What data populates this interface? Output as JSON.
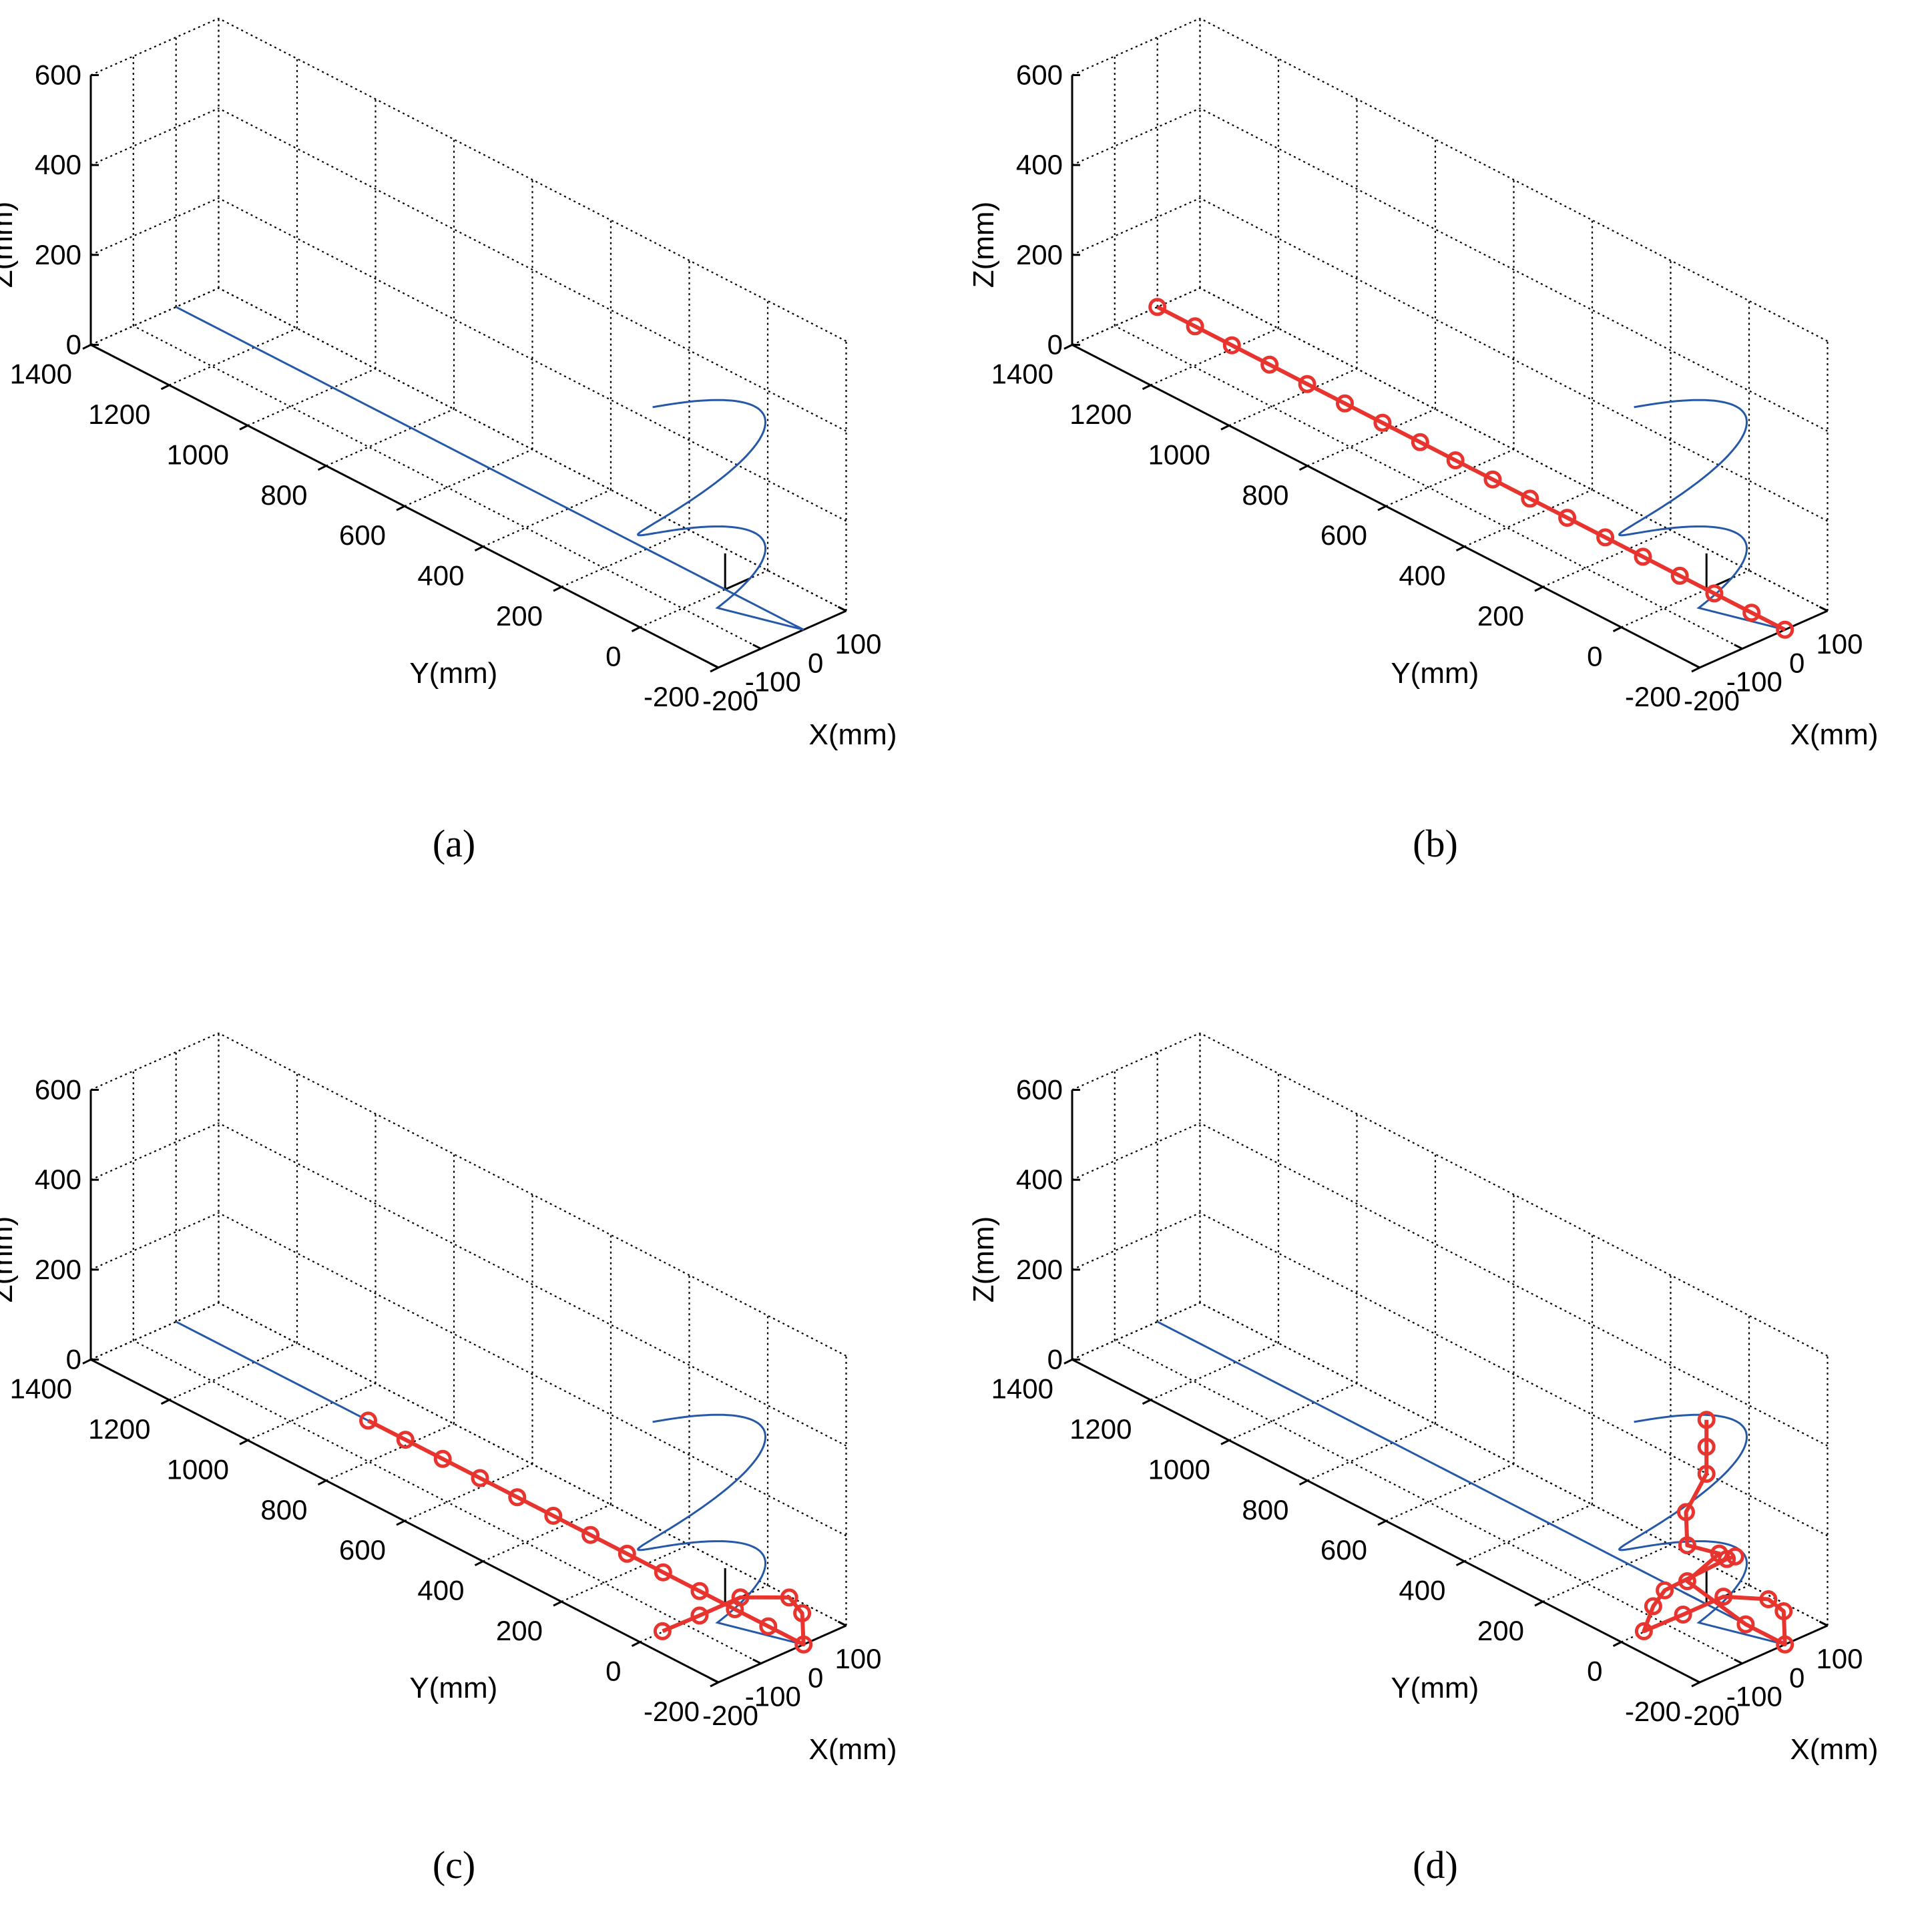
{
  "figure": {
    "colors": {
      "trajectory": "#2559a7",
      "manipulator": "#e8342f",
      "grid": "#000000"
    }
  },
  "chart_data": [
    {
      "type": "line3d",
      "panel": "a",
      "caption": "(a)",
      "xlabel": "X(mm)",
      "ylabel": "Y(mm)",
      "zlabel": "Z(mm)",
      "xlim": [
        -200,
        100
      ],
      "ylim": [
        -200,
        1400
      ],
      "zlim": [
        0,
        600
      ],
      "xticks": [
        -200,
        -100,
        0,
        100
      ],
      "yticks": [
        -200,
        0,
        200,
        400,
        600,
        800,
        1000,
        1200,
        1400
      ],
      "zticks": [
        0,
        200,
        400,
        600
      ],
      "xtick_labels": [
        "-200",
        "-100",
        "0",
        "100"
      ],
      "ytick_labels": [
        "-200",
        "0",
        "200",
        "400",
        "600",
        "800",
        "1000",
        "1200",
        "1400"
      ],
      "ztick_labels": [
        "0",
        "200",
        "400",
        "600"
      ],
      "grid": true,
      "series": [
        {
          "role": "trajectory",
          "marker": "none",
          "points": []
        }
      ]
    },
    {
      "type": "line3d",
      "panel": "b",
      "caption": "(b)",
      "xlabel": "X(mm)",
      "ylabel": "Y(mm)",
      "zlabel": "Z(mm)",
      "xlim": [
        -200,
        100
      ],
      "ylim": [
        -200,
        1400
      ],
      "zlim": [
        0,
        600
      ],
      "xticks": [
        -200,
        -100,
        0,
        100
      ],
      "yticks": [
        -200,
        0,
        200,
        400,
        600,
        800,
        1000,
        1200,
        1400
      ],
      "zticks": [
        0,
        200,
        400,
        600
      ],
      "xtick_labels": [
        "-200",
        "-100",
        "0",
        "100"
      ],
      "ytick_labels": [
        "-200",
        "0",
        "200",
        "400",
        "600",
        "800",
        "1000",
        "1200",
        "1400"
      ],
      "ztick_labels": [
        "0",
        "200",
        "400",
        "600"
      ],
      "grid": true,
      "series": [
        {
          "role": "trajectory",
          "marker": "none",
          "points": []
        },
        {
          "role": "manipulator",
          "marker": "circle",
          "points": [
            [
              0,
              1400,
              0
            ],
            [
              0,
              1304,
              0
            ],
            [
              0,
              1210,
              0
            ],
            [
              0,
              1114,
              0
            ],
            [
              0,
              1018,
              0
            ],
            [
              0,
              922,
              0
            ],
            [
              0,
              826,
              0
            ],
            [
              0,
              730,
              0
            ],
            [
              0,
              640,
              0
            ],
            [
              0,
              545,
              0
            ],
            [
              0,
              450,
              0
            ],
            [
              0,
              355,
              0
            ],
            [
              0,
              258,
              0
            ],
            [
              0,
              162,
              0
            ],
            [
              0,
              68,
              0
            ],
            [
              0,
              -20,
              0
            ],
            [
              0,
              -115,
              0
            ],
            [
              0,
              -200,
              0
            ]
          ]
        }
      ]
    },
    {
      "type": "line3d",
      "panel": "c",
      "caption": "(c)",
      "xlabel": "X(mm)",
      "ylabel": "Y(mm)",
      "zlabel": "Z(mm)",
      "xlim": [
        -200,
        100
      ],
      "ylim": [
        -200,
        1400
      ],
      "zlim": [
        0,
        600
      ],
      "xticks": [
        -200,
        -100,
        0,
        100
      ],
      "yticks": [
        -200,
        0,
        200,
        400,
        600,
        800,
        1000,
        1200,
        1400
      ],
      "zticks": [
        0,
        200,
        400,
        600
      ],
      "xtick_labels": [
        "-200",
        "-100",
        "0",
        "100"
      ],
      "ytick_labels": [
        "-200",
        "0",
        "200",
        "400",
        "600",
        "800",
        "1000",
        "1200",
        "1400"
      ],
      "ztick_labels": [
        "0",
        "200",
        "400",
        "600"
      ],
      "grid": true,
      "series": [
        {
          "role": "trajectory",
          "marker": "none",
          "points": []
        },
        {
          "role": "manipulator",
          "marker": "circle",
          "points": [
            [
              0,
              910,
              0
            ],
            [
              0,
              815,
              0
            ],
            [
              0,
              720,
              0
            ],
            [
              0,
              625,
              0
            ],
            [
              0,
              530,
              0
            ],
            [
              0,
              438,
              0
            ],
            [
              0,
              343,
              0
            ],
            [
              0,
              250,
              0
            ],
            [
              0,
              158,
              0
            ],
            [
              0,
              65,
              0
            ],
            [
              0,
              -25,
              0
            ],
            [
              0,
              -110,
              0
            ],
            [
              0,
              -200,
              0
            ],
            [
              75,
              -115,
              0
            ],
            [
              97,
              -58,
              0
            ],
            [
              36,
              0,
              0
            ],
            [
              -60,
              0,
              0
            ],
            [
              -145,
              2,
              0
            ]
          ]
        }
      ]
    },
    {
      "type": "line3d",
      "panel": "d",
      "caption": "(d)",
      "xlabel": "X(mm)",
      "ylabel": "Y(mm)",
      "zlabel": "Z(mm)",
      "xlim": [
        -200,
        100
      ],
      "ylim": [
        -200,
        1400
      ],
      "zlim": [
        0,
        600
      ],
      "xticks": [
        -200,
        -100,
        0,
        100
      ],
      "yticks": [
        -200,
        0,
        200,
        400,
        600,
        800,
        1000,
        1200,
        1400
      ],
      "zticks": [
        0,
        200,
        400,
        600
      ],
      "xtick_labels": [
        "-200",
        "-100",
        "0",
        "100"
      ],
      "ytick_labels": [
        "-200",
        "0",
        "200",
        "400",
        "600",
        "800",
        "1000",
        "1200",
        "1400"
      ],
      "ztick_labels": [
        "0",
        "200",
        "400",
        "600"
      ],
      "grid": true,
      "series": [
        {
          "role": "trajectory",
          "marker": "none",
          "points": []
        },
        {
          "role": "manipulator",
          "marker": "circle",
          "points": [
            [
              0,
              0,
              410
            ],
            [
              0,
              0,
              350
            ],
            [
              0,
              0,
              290
            ],
            [
              -48,
              0,
              225
            ],
            [
              -45,
              0,
              150
            ],
            [
              30,
              0,
              100
            ],
            [
              -45,
              0,
              70
            ],
            [
              0,
              -100,
              0
            ],
            [
              0,
              -200,
              0
            ],
            [
              80,
              -110,
              0
            ],
            [
              90,
              -60,
              0
            ],
            [
              40,
              0,
              0
            ],
            [
              -55,
              0,
              0
            ],
            [
              -145,
              2,
              0
            ],
            [
              -125,
              0,
              48
            ],
            [
              -98,
              0,
              72
            ],
            [
              46,
              -2,
              82
            ],
            [
              63,
              -5,
              82
            ]
          ]
        }
      ]
    }
  ]
}
